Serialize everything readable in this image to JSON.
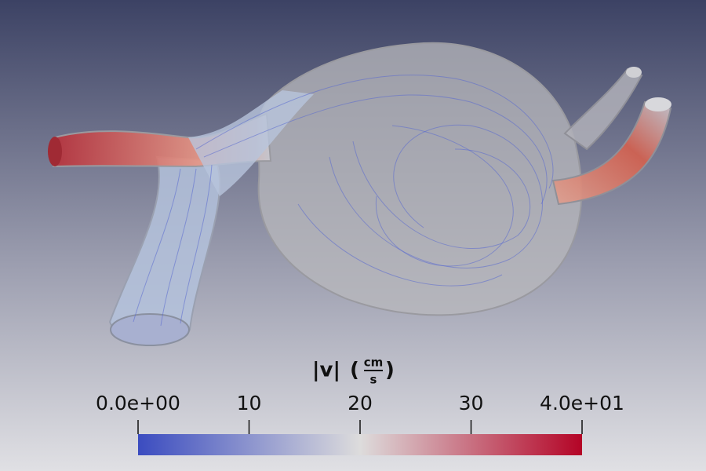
{
  "colorbar": {
    "title": {
      "symbol": "|v|",
      "open": "(",
      "numerator": "cm",
      "denominator": "s",
      "close": ")"
    },
    "range": [
      0,
      40
    ],
    "ticks": [
      {
        "value": 0,
        "label": "0.0e+00"
      },
      10,
      20,
      30,
      {
        "value": 40,
        "label": "4.0e+01"
      }
    ],
    "colormap": [
      "#3b4cc0",
      "#dddcdc",
      "#b40426"
    ]
  }
}
